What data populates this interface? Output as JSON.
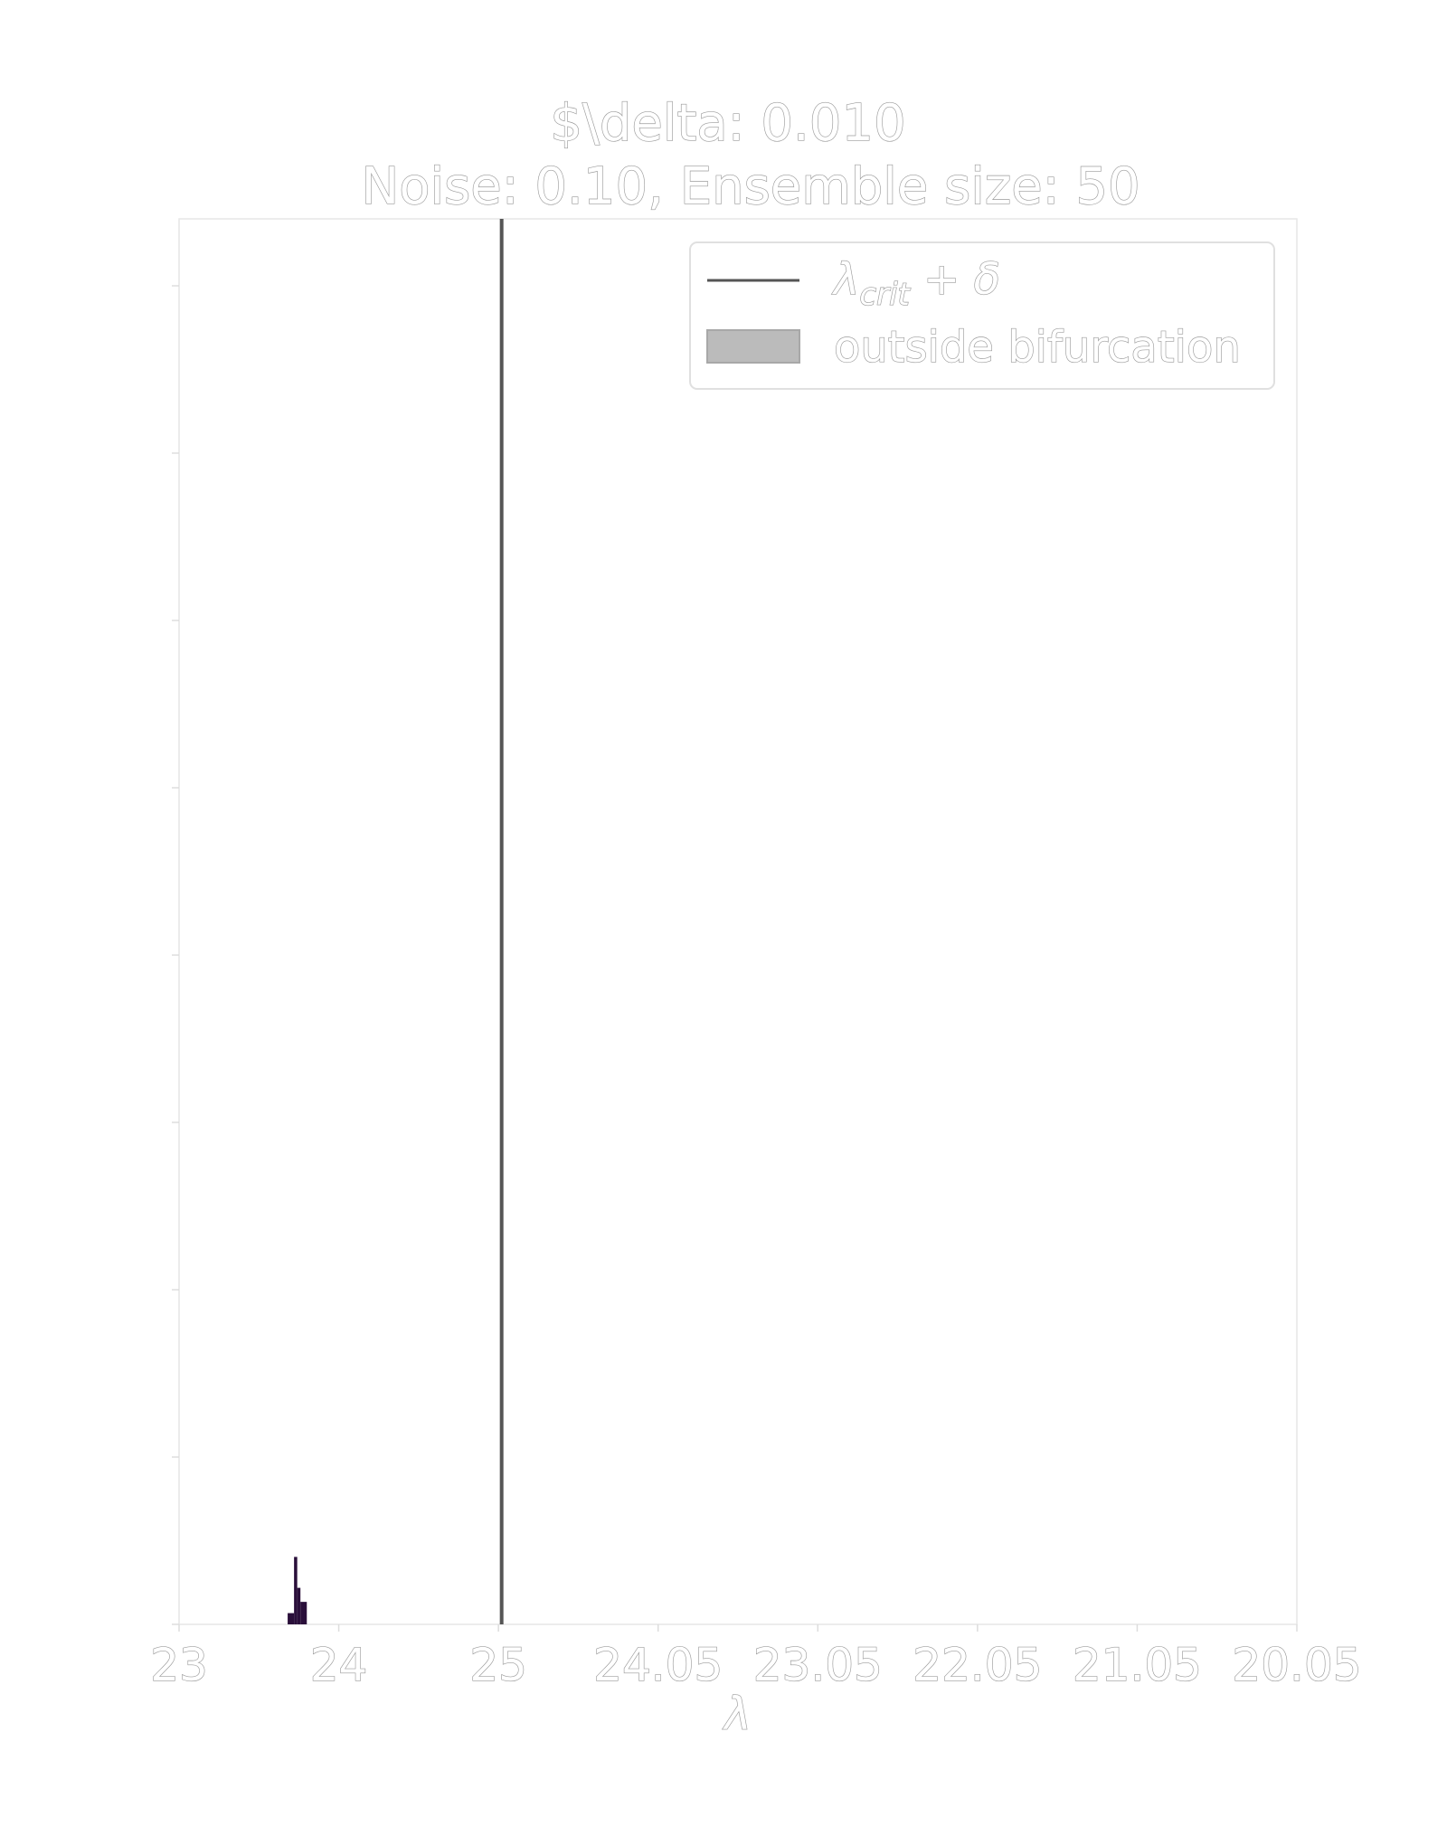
{
  "chart_data": {
    "type": "bar",
    "title": "$\\delta: 0.010",
    "subtitle": "Noise: 0.10, Ensemble size: 50",
    "xlabel": "λ",
    "ylabel": "",
    "x_tick_labels": [
      "23",
      "24",
      "25",
      "24.05",
      "23.05",
      "22.05",
      "21.05",
      "20.05"
    ],
    "grid": false,
    "legend_position": "top-right",
    "legend": [
      {
        "label_main": "λ",
        "label_sub": "crit",
        "label_rest": " + δ",
        "kind": "line",
        "color": "#555555"
      },
      {
        "label": "outside bifurcation",
        "kind": "patch",
        "color": "#bbbbbb"
      }
    ],
    "vline_x": 25.02,
    "ylim": [
      0,
      1
    ],
    "histogram_color": "#2a0f3a",
    "histogram": [
      {
        "x0": 23.68,
        "x1": 23.72,
        "value": 0.008
      },
      {
        "x0": 23.72,
        "x1": 23.74,
        "value": 0.048
      },
      {
        "x0": 23.74,
        "x1": 23.76,
        "value": 0.026
      },
      {
        "x0": 23.76,
        "x1": 23.8,
        "value": 0.016
      }
    ]
  }
}
